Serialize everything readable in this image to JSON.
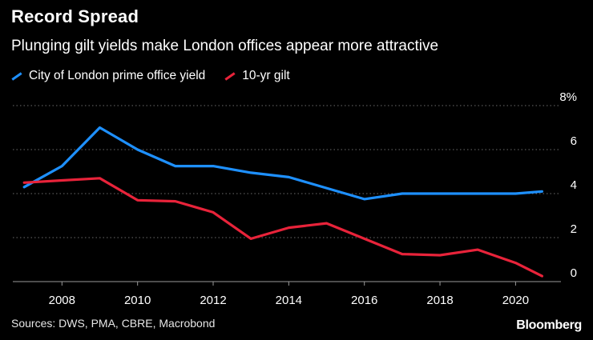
{
  "title": "Record Spread",
  "subtitle": "Plunging gilt yields make London offices appear more attractive",
  "source": "Sources: DWS, PMA, CBRE, Macrobond",
  "logo": "Bloomberg",
  "colors": {
    "blue": "#1e90ff",
    "red": "#e8233a",
    "grid": "#6b6b6b",
    "background": "#000000"
  },
  "chart_data": {
    "type": "line",
    "title": "Record Spread",
    "xlabel": "",
    "ylabel": "",
    "xlim": [
      2006.7,
      2021.2
    ],
    "ylim": [
      0,
      8
    ],
    "x_ticks": [
      2008,
      2010,
      2012,
      2014,
      2016,
      2018,
      2020
    ],
    "y_ticks": [
      0,
      2,
      4,
      6,
      8
    ],
    "y_tick_labels": [
      "0",
      "2",
      "4",
      "6",
      "8%"
    ],
    "legend_position": "top-left",
    "grid": "horizontal-dotted",
    "series": [
      {
        "name": "City of London prime office yield",
        "color": "#1e90ff",
        "x": [
          2007,
          2008,
          2009,
          2010,
          2011,
          2012,
          2013,
          2014,
          2015,
          2016,
          2017,
          2018,
          2019,
          2020,
          2020.7
        ],
        "values": [
          4.3,
          5.25,
          7.0,
          6.0,
          5.25,
          5.25,
          4.95,
          4.75,
          4.25,
          3.75,
          4.0,
          4.0,
          4.0,
          4.0,
          4.1
        ]
      },
      {
        "name": "10-yr gilt",
        "color": "#e8233a",
        "x": [
          2007,
          2008,
          2009,
          2010,
          2011,
          2012,
          2013,
          2014,
          2015,
          2016,
          2017,
          2018,
          2019,
          2020,
          2020.7
        ],
        "values": [
          4.5,
          4.6,
          4.7,
          3.7,
          3.65,
          3.15,
          1.95,
          2.45,
          2.65,
          1.95,
          1.25,
          1.2,
          1.45,
          0.85,
          0.25
        ]
      }
    ]
  }
}
